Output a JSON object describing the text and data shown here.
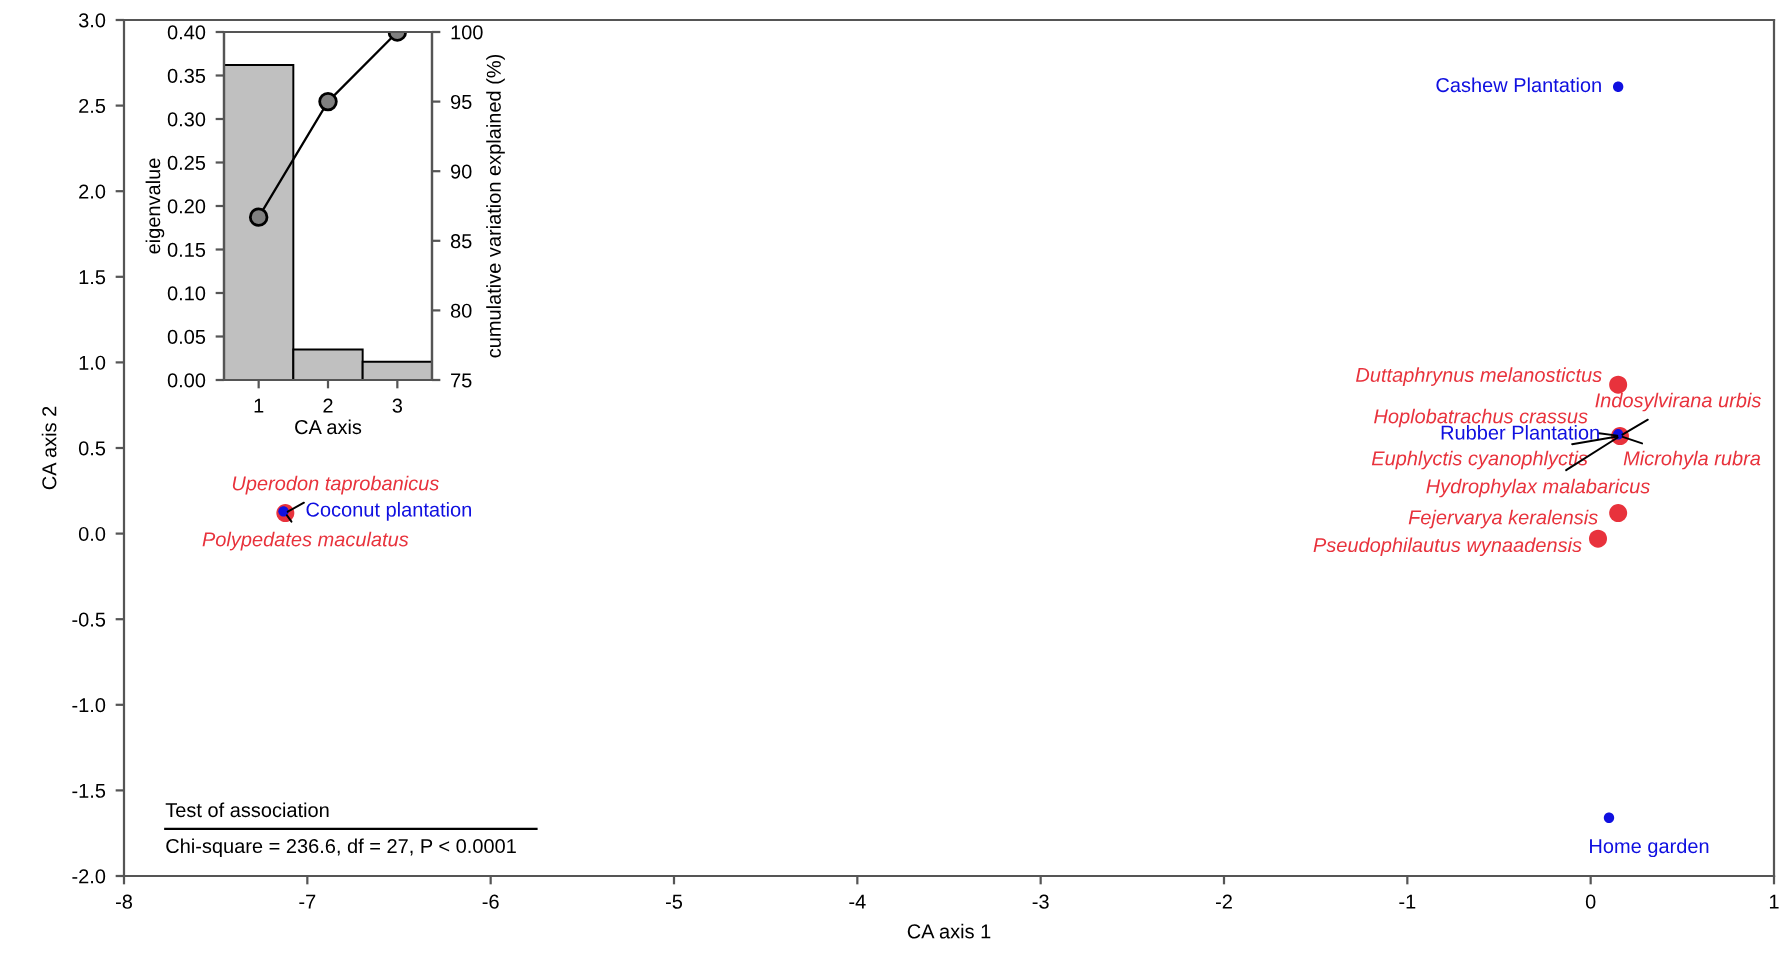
{
  "chart_data": [
    {
      "type": "scatter",
      "xlabel": "CA axis 1",
      "ylabel": "CA axis 2",
      "xlim": [
        -8,
        1
      ],
      "xticks": [
        -8,
        -7,
        -6,
        -5,
        -4,
        -3,
        -2,
        -1,
        0,
        1
      ],
      "ylim": [
        -2,
        3
      ],
      "yticks": [
        {
          "value": -2,
          "label": "-2.0"
        },
        {
          "value": -1.5,
          "label": "-1.5"
        },
        {
          "value": -1,
          "label": "-1.0"
        },
        {
          "value": -0.5,
          "label": "-0.5"
        },
        {
          "value": 0,
          "label": "0.0"
        },
        {
          "value": 0.5,
          "label": "0.5"
        },
        {
          "value": 1,
          "label": "1.0"
        },
        {
          "value": 1.5,
          "label": "1.5"
        },
        {
          "value": 2,
          "label": "2.0"
        },
        {
          "value": 2.5,
          "label": "2.5"
        },
        {
          "value": 3,
          "label": "3.0"
        }
      ],
      "marker": "circle",
      "series": [
        {
          "color": "#e8323c",
          "x": [
            0.15,
            0.16,
            0.15,
            0.04,
            -7.12
          ],
          "values": [
            0.87,
            0.57,
            0.12,
            -0.03,
            0.12
          ]
        },
        {
          "color": "#1010e0",
          "x": [
            0.15,
            0.15,
            -7.13,
            0.1
          ],
          "values": [
            2.61,
            0.58,
            0.13,
            -1.66
          ]
        }
      ],
      "annotations": [
        {
          "text": "Cashew Plantation",
          "x": 0.15,
          "y": 2.61
        },
        {
          "text": "Duttaphrynus melanostictus",
          "x": 0.15,
          "y": 0.87
        },
        {
          "text": "Indosylvirana urbis",
          "x": 0.16,
          "y": 0.57
        },
        {
          "text": "Hoplobatrachus crassus",
          "x": 0.16,
          "y": 0.57
        },
        {
          "text": "Rubber Plantation",
          "x": 0.15,
          "y": 0.58
        },
        {
          "text": "Euphlyctis cyanophlyctis",
          "x": 0.16,
          "y": 0.57
        },
        {
          "text": "Microhyla rubra",
          "x": 0.16,
          "y": 0.57
        },
        {
          "text": "Hydrophylax malabaricus",
          "x": 0.16,
          "y": 0.57
        },
        {
          "text": "Fejervarya keralensis",
          "x": 0.15,
          "y": 0.12
        },
        {
          "text": "Pseudophilautus wynaadensis",
          "x": 0.04,
          "y": -0.03
        },
        {
          "text": "Uperodon taprobanicus",
          "x": -7.12,
          "y": 0.12
        },
        {
          "text": "Coconut plantation",
          "x": -7.13,
          "y": 0.13
        },
        {
          "text": "Polypedates maculatus",
          "x": -7.12,
          "y": 0.12
        },
        {
          "text": "Home garden",
          "x": 0.1,
          "y": -1.66
        },
        "Test of association",
        "Chi-square = 236.6, df = 27, P < 0.0001"
      ]
    },
    {
      "type": "bar",
      "xlabel": "CA axis",
      "ylabel": "eigenvalue",
      "y2label": "cumulative variation explained (%)",
      "categories": [
        "1",
        "2",
        "3"
      ],
      "ylim": [
        0,
        0.4
      ],
      "yticks": [
        {
          "value": 0,
          "label": "0.00"
        },
        {
          "value": 0.05,
          "label": "0.05"
        },
        {
          "value": 0.1,
          "label": "0.10"
        },
        {
          "value": 0.15,
          "label": "0.15"
        },
        {
          "value": 0.2,
          "label": "0.20"
        },
        {
          "value": 0.25,
          "label": "0.25"
        },
        {
          "value": 0.3,
          "label": "0.30"
        },
        {
          "value": 0.35,
          "label": "0.35"
        },
        {
          "value": 0.4,
          "label": "0.40"
        }
      ],
      "y2lim": [
        75,
        100
      ],
      "y2ticks": [
        75,
        80,
        85,
        90,
        95,
        100
      ],
      "series": [
        {
          "color": "#c0c0c0",
          "values": [
            0.362,
            0.035,
            0.021
          ]
        },
        {
          "type": "line",
          "axis": "y2",
          "color": "#808080",
          "marker": "circle",
          "values": [
            86.7,
            95.0,
            100
          ]
        }
      ]
    }
  ]
}
